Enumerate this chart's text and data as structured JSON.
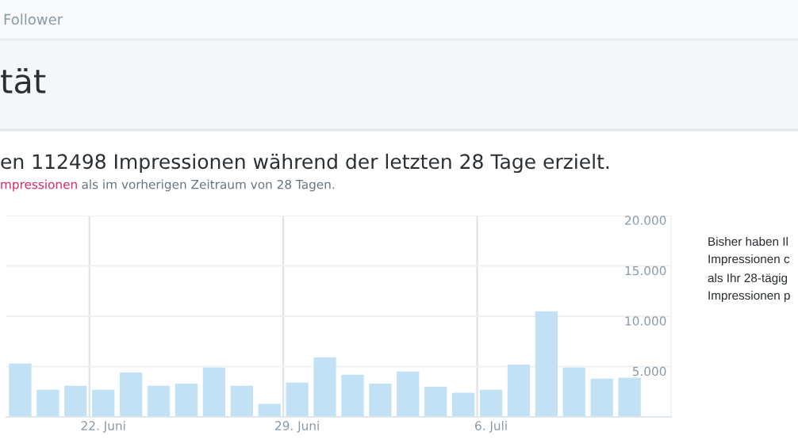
{
  "chart_data": {
    "type": "bar",
    "title": "tät",
    "subtitle": "en 112498 Impressionen während der letzten 28 Tage erzielt.",
    "annotations": [
      "Follower",
      "mpressionen",
      "als im vorherigen Zeitraum von 28 Tagen.",
      "Bisher haben Il",
      "Impressionen c",
      "als Ihr 28-tägig",
      "Impressionen p"
    ],
    "categories": [
      null,
      null,
      null,
      "22. Juni",
      null,
      null,
      null,
      null,
      null,
      null,
      "29. Juni",
      null,
      null,
      null,
      null,
      null,
      null,
      "6. Juli",
      null,
      null,
      null,
      null,
      null,
      null
    ],
    "values": [
      5300,
      2700,
      3100,
      2700,
      4400,
      3100,
      3300,
      4900,
      3100,
      1300,
      3400,
      5900,
      4200,
      3300,
      4500,
      3000,
      2400,
      2700,
      5200,
      10500,
      4900,
      3800,
      3900,
      null
    ],
    "color": "#c3e1f5",
    "ylim": [
      0,
      20000
    ],
    "yticks": [
      {
        "value": 5000,
        "label": "5.000"
      },
      {
        "value": 10000,
        "label": "10.000"
      },
      {
        "value": 15000,
        "label": "15.000"
      },
      {
        "value": 20000,
        "label": "20.000"
      }
    ],
    "grid": true
  }
}
